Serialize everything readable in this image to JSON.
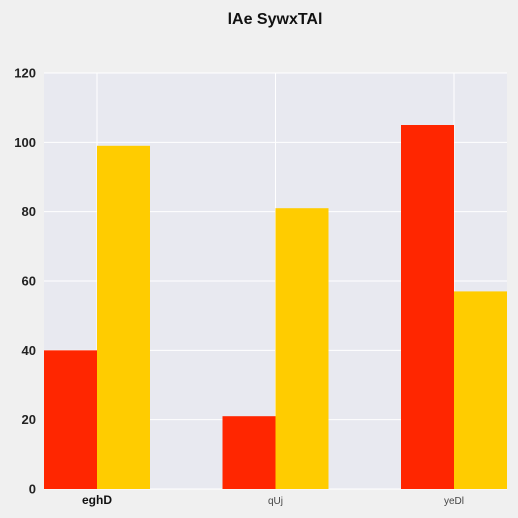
{
  "chart_data": {
    "type": "bar",
    "title": "lAe SywxTAl",
    "categories": [
      "eghD",
      "qUj",
      "yeDl"
    ],
    "series": [
      {
        "color": "#ff2600",
        "values": [
          40,
          21,
          105
        ]
      },
      {
        "color": "#ffcc00",
        "values": [
          99,
          81,
          57
        ]
      }
    ],
    "ylim": [
      0,
      120
    ],
    "yticks": [
      0,
      20,
      40,
      60,
      80,
      100,
      120
    ],
    "grid": true,
    "plot_background": "#e8e9f0",
    "grid_color": "#ffffff"
  }
}
